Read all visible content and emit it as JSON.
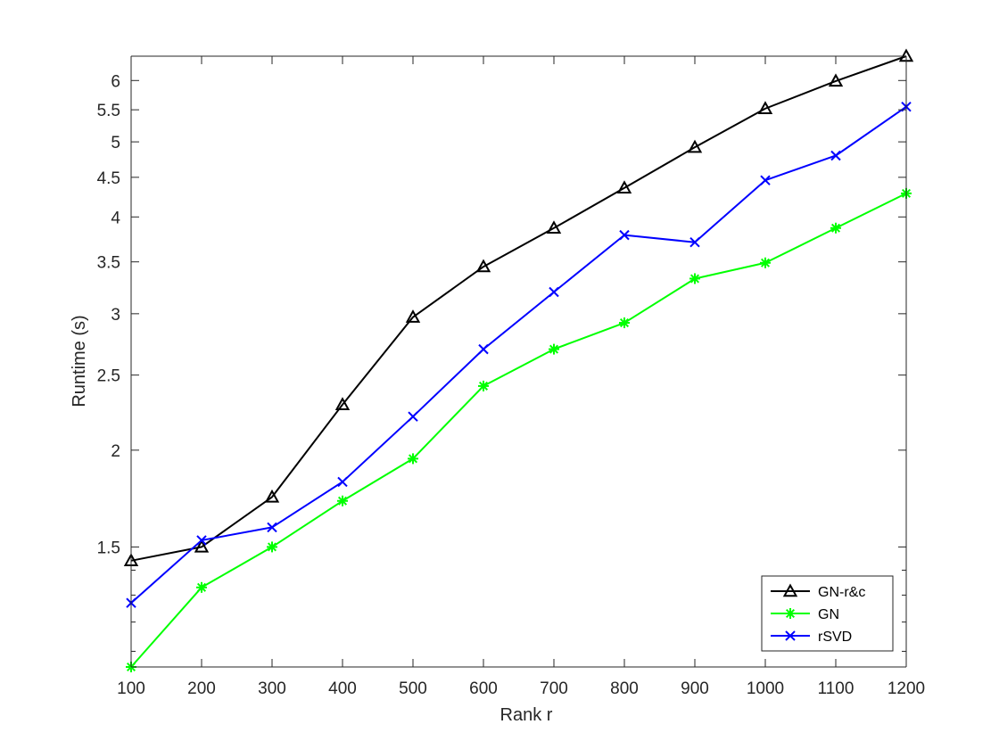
{
  "chart_data": {
    "type": "line",
    "title": "",
    "xlabel": "Rank r",
    "ylabel": "Runtime (s)",
    "yscale": "log",
    "xlim": [
      100,
      1200
    ],
    "ylim": [
      1.05,
      6.45
    ],
    "x": [
      100,
      200,
      300,
      400,
      500,
      600,
      700,
      800,
      900,
      1000,
      1100,
      1200
    ],
    "xticks": [
      100,
      200,
      300,
      400,
      500,
      600,
      700,
      800,
      900,
      1000,
      1100,
      1200
    ],
    "yticks": [
      1.5,
      2,
      2.5,
      3,
      3.5,
      4,
      4.5,
      5,
      5.5,
      6
    ],
    "ytick_labels": [
      "1.5",
      "2",
      "2.5",
      "3",
      "3.5",
      "4",
      "4.5",
      "5",
      "5.5",
      "6"
    ],
    "yminor_ticks": [
      1.1,
      1.2,
      1.3,
      1.4
    ],
    "grid": false,
    "legend_position": "bottom-right",
    "series": [
      {
        "name": "GN-r&c",
        "color": "#000000",
        "marker": "triangle",
        "values": [
          1.44,
          1.5,
          1.74,
          2.29,
          2.97,
          3.45,
          3.87,
          4.36,
          4.92,
          5.52,
          5.99,
          6.45
        ]
      },
      {
        "name": "GN",
        "color": "#00ff00",
        "marker": "asterisk",
        "values": [
          1.05,
          1.33,
          1.5,
          1.72,
          1.95,
          2.42,
          2.7,
          2.92,
          3.33,
          3.49,
          3.87,
          4.29
        ]
      },
      {
        "name": "rSVD",
        "color": "#0000ff",
        "marker": "x",
        "values": [
          1.27,
          1.53,
          1.59,
          1.82,
          2.21,
          2.7,
          3.2,
          3.79,
          3.71,
          4.46,
          4.8,
          5.55
        ]
      }
    ]
  }
}
